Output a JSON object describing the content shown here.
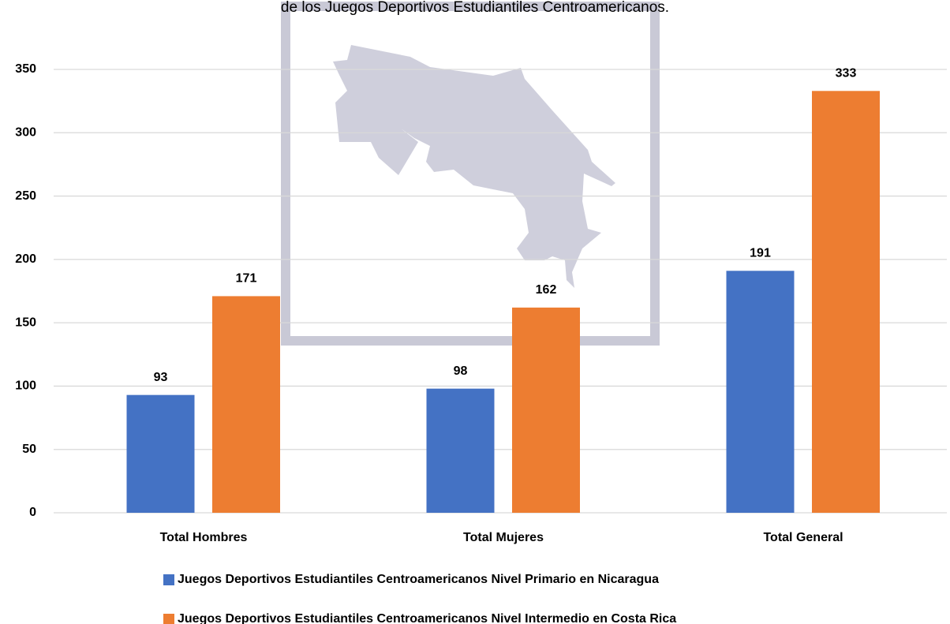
{
  "chart_data": {
    "type": "bar",
    "title": "de los Juegos Deportivos Estudiantiles Centroamericanos.",
    "categories": [
      "Total Hombres",
      "Total Mujeres",
      "Total General"
    ],
    "series": [
      {
        "name": "Juegos Deportivos Estudiantiles Centroamericanos Nivel Primario en Nicaragua",
        "color": "#4472c4",
        "values": [
          93,
          98,
          191
        ]
      },
      {
        "name": "Juegos Deportivos Estudiantiles Centroamericanos Nivel Intermedio en Costa Rica",
        "color": "#ed7d31",
        "values": [
          171,
          162,
          333
        ]
      }
    ],
    "ylim": [
      0,
      350
    ],
    "yticks": [
      0,
      50,
      100,
      150,
      200,
      250,
      300,
      350
    ],
    "grid": true,
    "legend": "bottom"
  }
}
